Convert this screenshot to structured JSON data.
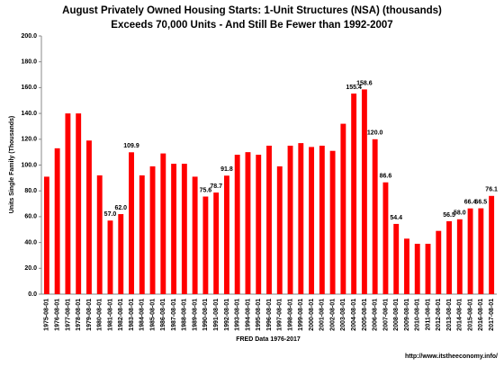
{
  "chart_data": {
    "type": "bar",
    "title": "August Privately Owned Housing Starts: 1-Unit Structures (NSA) (thousands)",
    "subtitle": "Exceeds 70,000 Units - And Still Be Fewer than 1992-2007",
    "y_label": "Units Single Family (Thousands)",
    "x_label": "FRED  Data 1976-2017",
    "source": "http://www.itstheeconomy.info/",
    "color": "#ff0000",
    "categories": [
      "1975-08-01",
      "1976-08-01",
      "1977-08-01",
      "1978-08-01",
      "1979-08-01",
      "1980-08-01",
      "1981-08-01",
      "1982-08-01",
      "1983-08-01",
      "1984-08-01",
      "1985-08-01",
      "1986-08-01",
      "1987-08-01",
      "1988-08-01",
      "1989-08-01",
      "1990-08-01",
      "1991-08-01",
      "1992-08-01",
      "1993-08-01",
      "1994-08-01",
      "1995-08-01",
      "1996-08-01",
      "1997-08-01",
      "1998-08-01",
      "1999-08-01",
      "2000-08-01",
      "2001-08-01",
      "2002-08-01",
      "2003-08-01",
      "2004-08-01",
      "2005-08-01",
      "2006-08-01",
      "2007-08-01",
      "2008-08-01",
      "2009-08-01",
      "2010-08-01",
      "2011-08-01",
      "2012-08-01",
      "2013-08-01",
      "2014-08-01",
      "2015-08-01",
      "2016-08-01",
      "2017-08-01"
    ],
    "values": [
      91,
      113,
      140,
      140,
      119,
      92,
      57,
      62,
      109.9,
      92,
      99,
      109,
      101,
      101,
      91,
      75.6,
      78.7,
      91.8,
      108,
      110,
      108,
      115,
      99,
      115,
      117,
      114,
      115,
      111,
      132,
      155.4,
      158.6,
      120,
      86.6,
      54.4,
      43,
      39,
      39,
      49,
      56.5,
      58,
      66.4,
      66.5,
      76.1
    ],
    "value_labels": [
      null,
      null,
      null,
      null,
      null,
      null,
      "57.0",
      "62.0",
      "109.9",
      null,
      null,
      null,
      null,
      null,
      null,
      "75.6",
      "78.7",
      "91.8",
      null,
      null,
      null,
      null,
      null,
      null,
      null,
      null,
      null,
      null,
      null,
      "155.4",
      "158.6",
      "120.0",
      "86.6",
      "54.4",
      null,
      null,
      null,
      null,
      "56.5",
      "58.0",
      "66.4",
      "66.5",
      "76.1"
    ],
    "ylim": [
      0,
      200
    ],
    "yticks": [
      {
        "value": 0,
        "label": "0.0"
      },
      {
        "value": 20,
        "label": "20.0"
      },
      {
        "value": 40,
        "label": "40.0"
      },
      {
        "value": 60,
        "label": "60.0"
      },
      {
        "value": 80,
        "label": "80.0"
      },
      {
        "value": 100,
        "label": "100.0"
      },
      {
        "value": 120,
        "label": "120.0"
      },
      {
        "value": 140,
        "label": "140.0"
      },
      {
        "value": 160,
        "label": "160.0"
      },
      {
        "value": 180,
        "label": "180.0"
      },
      {
        "value": 200,
        "label": "200.0"
      }
    ],
    "grid": false
  }
}
